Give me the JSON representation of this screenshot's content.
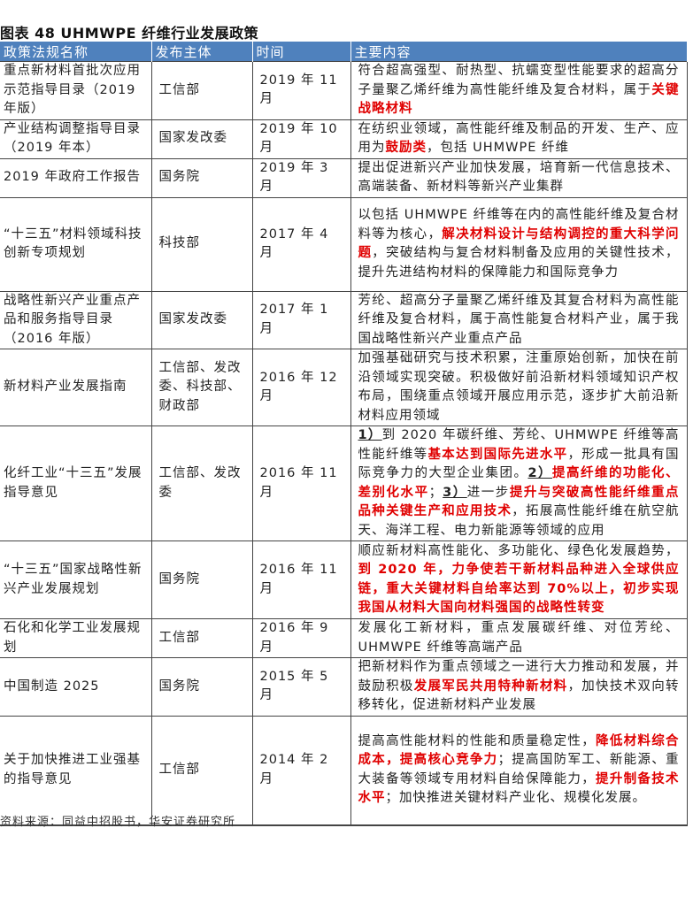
{
  "title": "图表 48 UHMWPE 纤维行业发展政策",
  "headers": [
    "政策法规名称",
    "发布主体",
    "时间",
    "主要内容"
  ],
  "rows": [
    {
      "name": "重点新材料首批次应用示范指导目录（2019 年版）",
      "issuer": "工信部",
      "date": "2019 年 11 月",
      "content": [
        {
          "t": "符合超高强型、耐热型、抗蠕变型性能要求的超高分子量聚乙烯纤维为高性能纤维及复合材料，属于"
        },
        {
          "t": "关键战略材料",
          "s": "red"
        }
      ]
    },
    {
      "name": "产业结构调整指导目录（2019 年本）",
      "issuer": "国家发改委",
      "date": "2019 年 10 月",
      "content": [
        {
          "t": "在纺织业领域，高性能纤维及制品的开发、生产、应用为"
        },
        {
          "t": "鼓励类",
          "s": "red"
        },
        {
          "t": "，包括 UHMWPE 纤维"
        }
      ]
    },
    {
      "name": "2019 年政府工作报告",
      "issuer": "国务院",
      "date": "2019 年 3 月",
      "content": [
        {
          "t": "提出促进新兴产业加快发展，培育新一代信息技术、高端装备、新材料等新兴产业集群"
        }
      ]
    },
    {
      "name": "“十三五”材料领域科技创新专项规划",
      "issuer": "科技部",
      "date": "2017 年 4 月",
      "content": [
        {
          "t": "以包括 UHMWPE 纤维等在内的高性能纤维及复合材料等为核心，"
        },
        {
          "t": "解决材料设计与结构调控的重大科学问题",
          "s": "red"
        },
        {
          "t": "，突破结构与复合材料制备及应用的关键性技术，提升先进结构材料的保障能力和国际竞争力"
        }
      ]
    },
    {
      "name": "战略性新兴产业重点产品和服务指导目录（2016 年版）",
      "issuer": "国家发改委",
      "date": "2017 年 1 月",
      "content": [
        {
          "t": "芳纶、超高分子量聚乙烯纤维及其复合材料为高性能纤维及复合材料，属于高性能复合材料产业，属于我国战略性新兴产业重点产品"
        }
      ]
    },
    {
      "name": "新材料产业发展指南",
      "issuer": "工信部、发改委、科技部、财政部",
      "date": "2016 年 12 月",
      "content": [
        {
          "t": "加强基础研究与技术积累，注重原始创新，加快在前沿领域实现突破。积极做好前沿新材料领域知识产权布局，围绕重点领域开展应用示范，逐步扩大前沿新材料应用领域"
        }
      ]
    },
    {
      "name": "化纤工业“十三五”发展指导意见",
      "issuer": "工信部、发改委",
      "date": "2016 年 11 月",
      "content": [
        {
          "t": "1）",
          "s": "num"
        },
        {
          "t": "到 2020 年碳纤维、芳纶、UHMWPE 纤维等高性能纤维等"
        },
        {
          "t": "基本达到国际先进水平",
          "s": "red"
        },
        {
          "t": "，形成一批具有国际竞争力的大型企业集团。"
        },
        {
          "t": "2）",
          "s": "num"
        },
        {
          "t": "提高纤维的功能化、差别化水平",
          "s": "red"
        },
        {
          "t": "；"
        },
        {
          "t": "3）",
          "s": "num"
        },
        {
          "t": "进一步"
        },
        {
          "t": "提升与突破高性能纤维重点品种关键生产和应用技术",
          "s": "red"
        },
        {
          "t": "，拓展高性能纤维在航空航天、海洋工程、电力新能源等领域的应用"
        }
      ]
    },
    {
      "name": "“十三五”国家战略性新兴产业发展规划",
      "issuer": "国务院",
      "date": "2016 年 11 月",
      "content": [
        {
          "t": "顺应新材料高性能化、多功能化、绿色化发展趋势，"
        },
        {
          "t": "到 2020 年，力争使若干新材料品种进入全球供应链，重大关键材料自给率达到 70%以上，初步实现我国从材料大国向材料强国的战略性转变",
          "s": "red"
        }
      ]
    },
    {
      "name": "石化和化学工业发展规划",
      "issuer": "工信部",
      "date": "2016 年 9 月",
      "content": [
        {
          "t": "发展化工新材料，重点发展碳纤维、对位芳纶、UHMWPE 纤维等高端产品"
        }
      ]
    },
    {
      "name": "中国制造 2025",
      "issuer": "国务院",
      "date": "2015 年 5 月",
      "content": [
        {
          "t": "把新材料作为重点领域之一进行大力推动和发展，并鼓励积极"
        },
        {
          "t": "发展军民共用特种新材料",
          "s": "red"
        },
        {
          "t": "，加快技术双向转移转化，促进新材料产业发展"
        }
      ]
    },
    {
      "name": "关于加快推进工业强基的指导意见",
      "issuer": "工信部",
      "date": "2014 年 2 月",
      "content": [
        {
          "t": "提高高性能材料的性能和质量稳定性，"
        },
        {
          "t": "降低材料综合成本，提高核心竞争力",
          "s": "red"
        },
        {
          "t": "；提高国防军工、新能源、重大装备等领域专用材料自给保障能力，"
        },
        {
          "t": "提升制备技术水平",
          "s": "red"
        },
        {
          "t": "；加快推进关键材料产业化、规模化发展。"
        }
      ]
    }
  ],
  "source": "资料来源：同益中招股书，华安证券研究所",
  "colors": {
    "header_bg": "#4f81bd",
    "highlight": "#e00000"
  }
}
